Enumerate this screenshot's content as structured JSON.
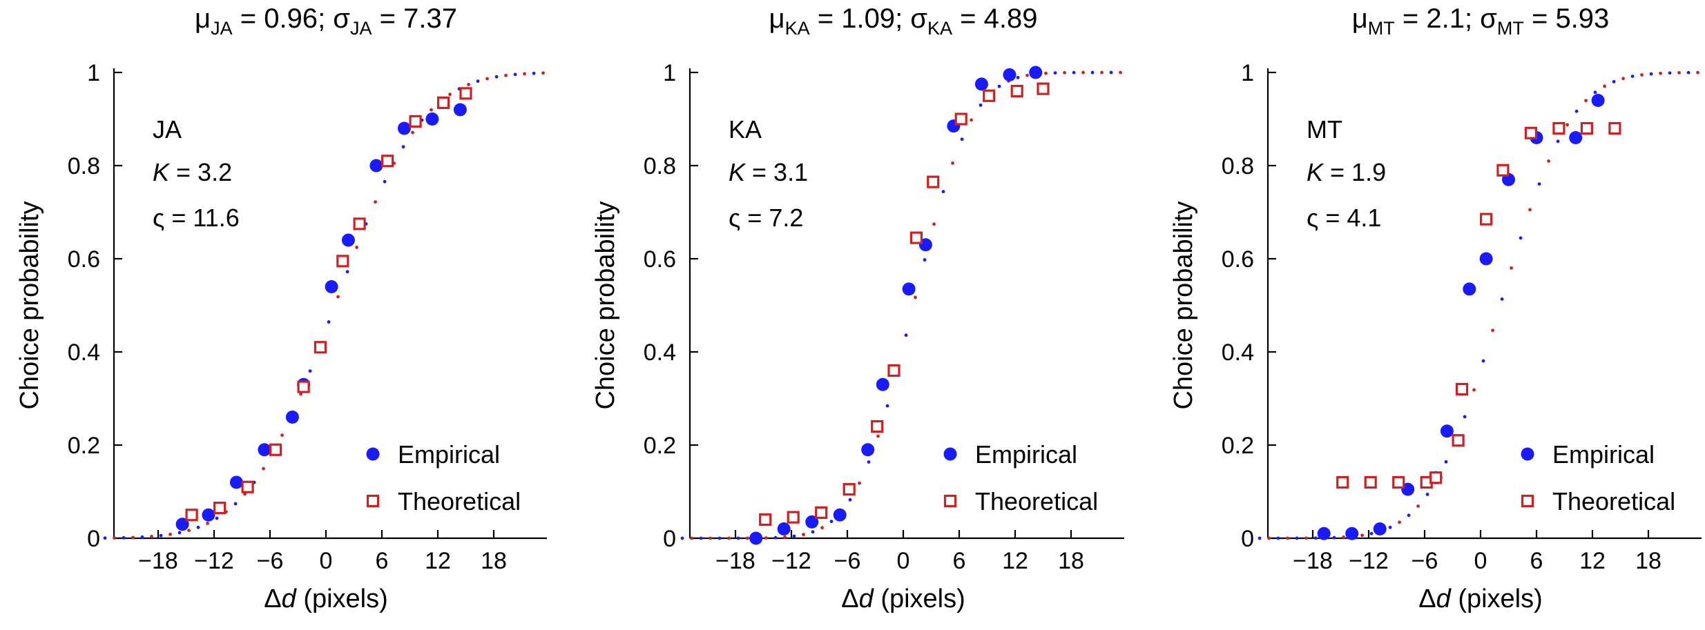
{
  "chart_data": [
    {
      "type": "scatter",
      "title": {
        "mu_sub": "JA",
        "mu_value": "0.96",
        "sigma_sub": "JA",
        "sigma_value": "7.37"
      },
      "subject": "JA",
      "K": "3.2",
      "varsigma": "11.6",
      "xlabel": "(pixels)",
      "ylabel": "Choice probability",
      "xlim": [
        -24,
        24
      ],
      "ylim": [
        0,
        1
      ],
      "xticks": [
        -18,
        -12,
        -6,
        0,
        6,
        12,
        18
      ],
      "xtick_labels": [
        "−18",
        "−12",
        "−6",
        "0",
        "6",
        "12",
        "18"
      ],
      "yticks": [
        0,
        0.2,
        0.4,
        0.6,
        0.8,
        1
      ],
      "ytick_labels": [
        "0",
        "0.2",
        "0.4",
        "0.6",
        "0.8",
        "1"
      ],
      "curve": {
        "mu": 0.96,
        "sigma": 7.37,
        "colors": [
          "#1a1aff",
          "#cc2222"
        ]
      },
      "legend": {
        "position": "bottom-right",
        "entries": [
          "Empirical",
          "Theoretical"
        ]
      },
      "series": [
        {
          "name": "Empirical",
          "marker": "circle",
          "color": "#1a1aff",
          "x": [
            -15.4,
            -12.6,
            -9.6,
            -6.6,
            -3.6,
            -2.4,
            0.6,
            2.4,
            5.4,
            8.4,
            11.4,
            14.4
          ],
          "y": [
            0.03,
            0.05,
            0.12,
            0.19,
            0.26,
            0.33,
            0.54,
            0.64,
            0.8,
            0.88,
            0.9,
            0.92
          ]
        },
        {
          "name": "Theoretical",
          "marker": "square",
          "color": "#cc2222",
          "x": [
            -14.4,
            -11.4,
            -8.4,
            -5.4,
            -2.4,
            -0.6,
            1.8,
            3.6,
            6.6,
            9.6,
            12.6,
            15.0
          ],
          "y": [
            0.05,
            0.065,
            0.11,
            0.19,
            0.325,
            0.41,
            0.595,
            0.675,
            0.81,
            0.895,
            0.935,
            0.955
          ]
        }
      ]
    },
    {
      "type": "scatter",
      "title": {
        "mu_sub": "KA",
        "mu_value": "1.09",
        "sigma_sub": "KA",
        "sigma_value": "4.89"
      },
      "subject": "KA",
      "K": "3.1",
      "varsigma": "7.2",
      "xlabel": "(pixels)",
      "ylabel": "Choice probability",
      "xlim": [
        -24,
        24
      ],
      "ylim": [
        0,
        1
      ],
      "xticks": [
        -18,
        -12,
        -6,
        0,
        6,
        12,
        18
      ],
      "xtick_labels": [
        "−18",
        "−12",
        "−6",
        "0",
        "6",
        "12",
        "18"
      ],
      "yticks": [
        0,
        0.2,
        0.4,
        0.6,
        0.8,
        1
      ],
      "ytick_labels": [
        "0",
        "0.2",
        "0.4",
        "0.6",
        "0.8",
        "1"
      ],
      "curve": {
        "mu": 1.09,
        "sigma": 4.89,
        "colors": [
          "#1a1aff",
          "#cc2222"
        ]
      },
      "legend": {
        "position": "bottom-right",
        "entries": [
          "Empirical",
          "Theoretical"
        ]
      },
      "series": [
        {
          "name": "Empirical",
          "marker": "circle",
          "color": "#1a1aff",
          "x": [
            -15.8,
            -12.8,
            -9.8,
            -6.8,
            -3.8,
            -2.2,
            0.6,
            2.4,
            5.4,
            8.4,
            11.4,
            14.2
          ],
          "y": [
            0.0,
            0.02,
            0.035,
            0.05,
            0.19,
            0.33,
            0.535,
            0.63,
            0.885,
            0.975,
            0.995,
            1.0
          ]
        },
        {
          "name": "Theoretical",
          "marker": "square",
          "color": "#cc2222",
          "x": [
            -14.8,
            -11.8,
            -8.8,
            -5.8,
            -2.8,
            -1.0,
            1.4,
            3.2,
            6.2,
            9.2,
            12.2,
            15.0
          ],
          "y": [
            0.04,
            0.045,
            0.055,
            0.105,
            0.24,
            0.36,
            0.645,
            0.765,
            0.9,
            0.95,
            0.96,
            0.965
          ]
        }
      ]
    },
    {
      "type": "scatter",
      "title": {
        "mu_sub": "MT",
        "mu_value": "2.1",
        "sigma_sub": "MT",
        "sigma_value": "5.93"
      },
      "subject": "MT",
      "K": "1.9",
      "varsigma": "4.1",
      "xlabel": "(pixels)",
      "ylabel": "Choice probability",
      "xlim": [
        -24,
        24
      ],
      "ylim": [
        0,
        1
      ],
      "xticks": [
        -18,
        -12,
        -6,
        0,
        6,
        12,
        18
      ],
      "xtick_labels": [
        "−18",
        "−12",
        "−6",
        "0",
        "6",
        "12",
        "18"
      ],
      "yticks": [
        0,
        0.2,
        0.4,
        0.6,
        0.8,
        1
      ],
      "ytick_labels": [
        "0",
        "0.2",
        "0.4",
        "0.6",
        "0.8",
        "1"
      ],
      "curve": {
        "mu": 2.1,
        "sigma": 5.93,
        "colors": [
          "#1a1aff",
          "#cc2222"
        ]
      },
      "legend": {
        "position": "bottom-right",
        "entries": [
          "Empirical",
          "Theoretical"
        ]
      },
      "series": [
        {
          "name": "Empirical",
          "marker": "circle",
          "color": "#1a1aff",
          "x": [
            -16.8,
            -13.8,
            -10.8,
            -7.8,
            -4.8,
            -3.6,
            -1.2,
            0.6,
            3.0,
            6.0,
            10.2,
            12.6
          ],
          "y": [
            0.01,
            0.01,
            0.02,
            0.105,
            0.13,
            0.23,
            0.535,
            0.6,
            0.77,
            0.86,
            0.86,
            0.94
          ]
        },
        {
          "name": "Theoretical",
          "marker": "square",
          "color": "#cc2222",
          "x": [
            -14.8,
            -11.8,
            -8.8,
            -5.8,
            -4.8,
            -2.4,
            -2.0,
            0.6,
            2.4,
            5.4,
            8.4,
            11.4,
            14.4
          ],
          "y": [
            0.12,
            0.12,
            0.12,
            0.12,
            0.13,
            0.21,
            0.32,
            0.685,
            0.79,
            0.87,
            0.88,
            0.88,
            0.88
          ]
        }
      ]
    }
  ]
}
